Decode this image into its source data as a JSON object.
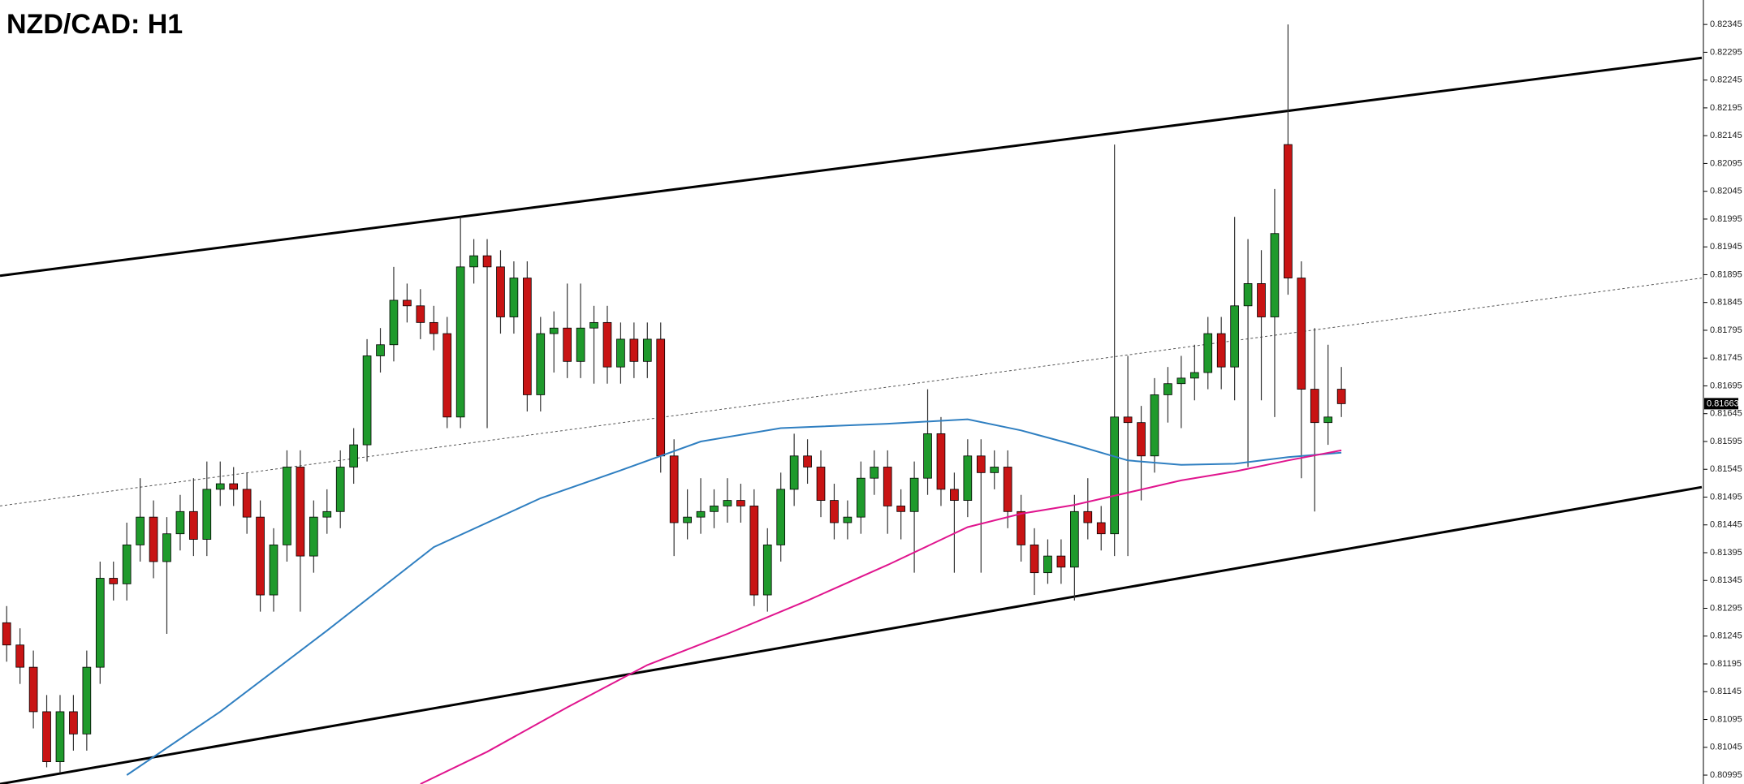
{
  "chart_data": {
    "type": "candlestick",
    "title": "NZD/CAD: H1",
    "up_color": "#1f9a2c",
    "down_color": "#c81414",
    "xlim": [
      -0.5,
      127
    ],
    "ylim": [
      0.80979,
      0.82389
    ],
    "yticks": [
      0.82345,
      0.82295,
      0.82245,
      0.82195,
      0.82145,
      0.82095,
      0.82045,
      0.81995,
      0.81945,
      0.81895,
      0.81845,
      0.81795,
      0.81745,
      0.81695,
      0.81645,
      0.81595,
      0.81545,
      0.81495,
      0.81445,
      0.81395,
      0.81345,
      0.81295,
      0.81245,
      0.81195,
      0.81145,
      0.81095,
      0.81045,
      0.80995
    ],
    "last_price": 0.81663,
    "candles": [
      [
        0.81269,
        0.81299,
        0.81199,
        0.81229
      ],
      [
        0.81229,
        0.81259,
        0.81159,
        0.81189
      ],
      [
        0.81189,
        0.81219,
        0.81079,
        0.81109
      ],
      [
        0.81109,
        0.81139,
        0.81009,
        0.81019
      ],
      [
        0.81019,
        0.81139,
        0.80999,
        0.81109
      ],
      [
        0.81109,
        0.81139,
        0.81039,
        0.81069
      ],
      [
        0.81069,
        0.81219,
        0.81039,
        0.81189
      ],
      [
        0.81189,
        0.81379,
        0.81159,
        0.81349
      ],
      [
        0.81349,
        0.81379,
        0.81309,
        0.81339
      ],
      [
        0.81339,
        0.81449,
        0.81309,
        0.81409
      ],
      [
        0.81409,
        0.81529,
        0.81379,
        0.81459
      ],
      [
        0.81459,
        0.81489,
        0.81349,
        0.81379
      ],
      [
        0.81379,
        0.81459,
        0.81249,
        0.81429
      ],
      [
        0.81429,
        0.81499,
        0.81399,
        0.81469
      ],
      [
        0.81469,
        0.81529,
        0.81389,
        0.81419
      ],
      [
        0.81419,
        0.81559,
        0.81389,
        0.81509
      ],
      [
        0.81509,
        0.81559,
        0.81479,
        0.81519
      ],
      [
        0.81519,
        0.81549,
        0.81479,
        0.81509
      ],
      [
        0.81509,
        0.81539,
        0.81429,
        0.81459
      ],
      [
        0.81459,
        0.81489,
        0.81289,
        0.81319
      ],
      [
        0.81319,
        0.81439,
        0.81289,
        0.81409
      ],
      [
        0.81409,
        0.81579,
        0.81379,
        0.81549
      ],
      [
        0.81549,
        0.81579,
        0.81289,
        0.81389
      ],
      [
        0.81389,
        0.81489,
        0.81359,
        0.81459
      ],
      [
        0.81459,
        0.81509,
        0.81429,
        0.81469
      ],
      [
        0.81469,
        0.81579,
        0.81439,
        0.81549
      ],
      [
        0.81549,
        0.81619,
        0.81519,
        0.81589
      ],
      [
        0.81589,
        0.81779,
        0.81559,
        0.81749
      ],
      [
        0.81749,
        0.81799,
        0.81719,
        0.81769
      ],
      [
        0.81769,
        0.81909,
        0.81739,
        0.81849
      ],
      [
        0.81849,
        0.81879,
        0.81809,
        0.81839
      ],
      [
        0.81839,
        0.81869,
        0.81779,
        0.81809
      ],
      [
        0.81809,
        0.81839,
        0.81759,
        0.81789
      ],
      [
        0.81789,
        0.81819,
        0.81619,
        0.81639
      ],
      [
        0.81639,
        0.81999,
        0.81619,
        0.81909
      ],
      [
        0.81909,
        0.81959,
        0.81879,
        0.81929
      ],
      [
        0.81929,
        0.81959,
        0.81619,
        0.81909
      ],
      [
        0.81909,
        0.81939,
        0.81789,
        0.81819
      ],
      [
        0.81819,
        0.81919,
        0.81789,
        0.81889
      ],
      [
        0.81889,
        0.81919,
        0.81649,
        0.81679
      ],
      [
        0.81679,
        0.81819,
        0.81649,
        0.81789
      ],
      [
        0.81789,
        0.81829,
        0.81719,
        0.81799
      ],
      [
        0.81799,
        0.81879,
        0.81709,
        0.81739
      ],
      [
        0.81739,
        0.81879,
        0.81709,
        0.81799
      ],
      [
        0.81799,
        0.81839,
        0.81699,
        0.81809
      ],
      [
        0.81809,
        0.81839,
        0.81699,
        0.81729
      ],
      [
        0.81729,
        0.81809,
        0.81699,
        0.81779
      ],
      [
        0.81779,
        0.81809,
        0.81709,
        0.81739
      ],
      [
        0.81739,
        0.81809,
        0.81709,
        0.81779
      ],
      [
        0.81779,
        0.81809,
        0.81539,
        0.81569
      ],
      [
        0.81569,
        0.81599,
        0.81389,
        0.81449
      ],
      [
        0.81449,
        0.81509,
        0.81419,
        0.81459
      ],
      [
        0.81459,
        0.81529,
        0.81429,
        0.81469
      ],
      [
        0.81469,
        0.81509,
        0.81439,
        0.81479
      ],
      [
        0.81479,
        0.81529,
        0.81449,
        0.81489
      ],
      [
        0.81489,
        0.81519,
        0.81449,
        0.81479
      ],
      [
        0.81479,
        0.81509,
        0.81299,
        0.81319
      ],
      [
        0.81319,
        0.81439,
        0.81289,
        0.81409
      ],
      [
        0.81409,
        0.81539,
        0.81379,
        0.81509
      ],
      [
        0.81509,
        0.81609,
        0.81479,
        0.81569
      ],
      [
        0.81569,
        0.81599,
        0.81519,
        0.81549
      ],
      [
        0.81549,
        0.81579,
        0.81459,
        0.81489
      ],
      [
        0.81489,
        0.81519,
        0.81419,
        0.81449
      ],
      [
        0.81449,
        0.81489,
        0.81419,
        0.81459
      ],
      [
        0.81459,
        0.81559,
        0.81429,
        0.81529
      ],
      [
        0.81529,
        0.81579,
        0.81499,
        0.81549
      ],
      [
        0.81549,
        0.81579,
        0.81429,
        0.81479
      ],
      [
        0.81479,
        0.81509,
        0.81419,
        0.81469
      ],
      [
        0.81469,
        0.81559,
        0.81359,
        0.81529
      ],
      [
        0.81529,
        0.81689,
        0.81499,
        0.81609
      ],
      [
        0.81609,
        0.81639,
        0.81479,
        0.81509
      ],
      [
        0.81509,
        0.81539,
        0.81359,
        0.81489
      ],
      [
        0.81489,
        0.81599,
        0.81459,
        0.81569
      ],
      [
        0.81569,
        0.81599,
        0.81359,
        0.81539
      ],
      [
        0.81539,
        0.81579,
        0.81509,
        0.81549
      ],
      [
        0.81549,
        0.81579,
        0.81439,
        0.81469
      ],
      [
        0.81469,
        0.81499,
        0.81379,
        0.81409
      ],
      [
        0.81409,
        0.81439,
        0.81319,
        0.81359
      ],
      [
        0.81359,
        0.81419,
        0.81339,
        0.81389
      ],
      [
        0.81389,
        0.81419,
        0.81339,
        0.81369
      ],
      [
        0.81369,
        0.81499,
        0.81309,
        0.81469
      ],
      [
        0.81469,
        0.81529,
        0.81419,
        0.81449
      ],
      [
        0.81449,
        0.81479,
        0.81399,
        0.81429
      ],
      [
        0.81429,
        0.82129,
        0.81389,
        0.81639
      ],
      [
        0.81639,
        0.81749,
        0.81389,
        0.81629
      ],
      [
        0.81629,
        0.81659,
        0.81489,
        0.81569
      ],
      [
        0.81569,
        0.81709,
        0.81539,
        0.81679
      ],
      [
        0.81679,
        0.81729,
        0.81629,
        0.81699
      ],
      [
        0.81699,
        0.81749,
        0.81619,
        0.81709
      ],
      [
        0.81709,
        0.81769,
        0.81669,
        0.81719
      ],
      [
        0.81719,
        0.81819,
        0.81689,
        0.81789
      ],
      [
        0.81789,
        0.81819,
        0.81689,
        0.81729
      ],
      [
        0.81729,
        0.81999,
        0.81669,
        0.81839
      ],
      [
        0.81839,
        0.81959,
        0.81549,
        0.81879
      ],
      [
        0.81879,
        0.81939,
        0.81669,
        0.81819
      ],
      [
        0.81819,
        0.82049,
        0.81639,
        0.81969
      ],
      [
        0.82129,
        0.82345,
        0.81859,
        0.81889
      ],
      [
        0.81889,
        0.81919,
        0.81529,
        0.81689
      ],
      [
        0.81689,
        0.81799,
        0.81469,
        0.81629
      ],
      [
        0.81629,
        0.81769,
        0.81589,
        0.81639
      ],
      [
        0.81689,
        0.81729,
        0.81639,
        0.81663
      ]
    ],
    "trendlines": [
      {
        "color": "#000000",
        "style": "solid",
        "x": [
          -0.5,
          127
        ],
        "values": [
          0.81893,
          0.82285
        ]
      },
      {
        "color": "#000000",
        "style": "solid",
        "x": [
          -0.5,
          127
        ],
        "values": [
          0.80979,
          0.81513
        ]
      },
      {
        "color": "#555555",
        "style": "dotted",
        "x": [
          -0.5,
          127
        ],
        "values": [
          0.81479,
          0.81889
        ]
      }
    ],
    "overlays": [
      {
        "color": "#2f7fc1",
        "x": [
          9,
          16,
          24,
          32,
          40,
          46,
          52,
          58,
          66,
          72,
          76,
          80,
          84,
          88,
          92,
          96,
          100
        ],
        "values": [
          0.80995,
          0.81109,
          0.81255,
          0.81405,
          0.81493,
          0.81543,
          0.81595,
          0.81619,
          0.81627,
          0.81635,
          0.81615,
          0.81589,
          0.81561,
          0.81553,
          0.81555,
          0.81567,
          0.81575
        ]
      },
      {
        "color": "#e0158e",
        "x": [
          31,
          36,
          42,
          48,
          54,
          60,
          66,
          72,
          76,
          80,
          84,
          88,
          92,
          96,
          100
        ],
        "values": [
          0.80979,
          0.81037,
          0.81117,
          0.81193,
          0.81249,
          0.81309,
          0.81373,
          0.81441,
          0.81465,
          0.81481,
          0.81503,
          0.81525,
          0.81541,
          0.81561,
          0.81579
        ]
      }
    ]
  }
}
